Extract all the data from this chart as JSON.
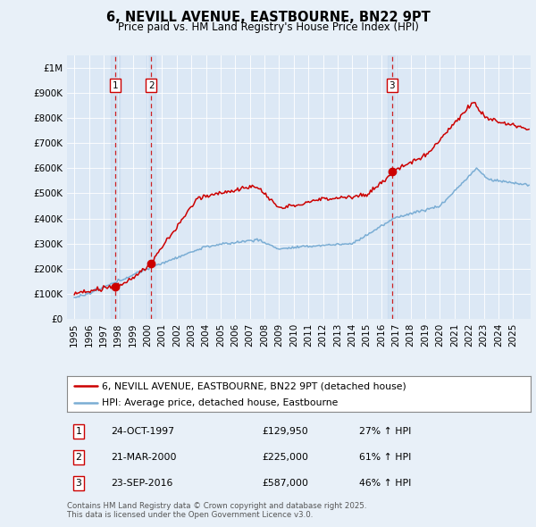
{
  "title": "6, NEVILL AVENUE, EASTBOURNE, BN22 9PT",
  "subtitle": "Price paid vs. HM Land Registry's House Price Index (HPI)",
  "background_color": "#e8f0f8",
  "plot_bg_color": "#dce8f5",
  "legend_line1": "6, NEVILL AVENUE, EASTBOURNE, BN22 9PT (detached house)",
  "legend_line2": "HPI: Average price, detached house, Eastbourne",
  "transactions": [
    {
      "num": 1,
      "date": "24-OCT-1997",
      "price": 129950,
      "hpi_change": "27% ↑ HPI",
      "year": 1997.8
    },
    {
      "num": 2,
      "date": "21-MAR-2000",
      "price": 225000,
      "hpi_change": "61% ↑ HPI",
      "year": 2000.25
    },
    {
      "num": 3,
      "date": "23-SEP-2016",
      "price": 587000,
      "hpi_change": "46% ↑ HPI",
      "year": 2016.72
    }
  ],
  "footer": "Contains HM Land Registry data © Crown copyright and database right 2025.\nThis data is licensed under the Open Government Licence v3.0.",
  "red_color": "#cc0000",
  "blue_color": "#7aadd4",
  "dashed_color": "#cc0000",
  "ylim": [
    0,
    1050000
  ],
  "xlim_start": 1994.5,
  "xlim_end": 2026.2
}
